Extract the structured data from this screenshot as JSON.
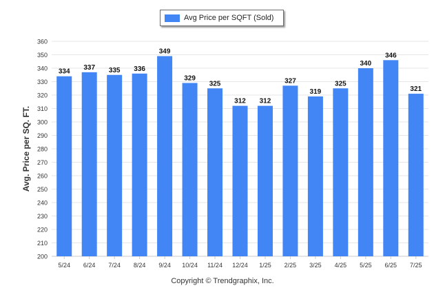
{
  "legend": {
    "label": "Avg Price per SQFT (Sold)"
  },
  "footer": {
    "copyright": "Copyright © Trendgraphix, Inc."
  },
  "colors": {
    "bar": "#4285f4",
    "grid": "#e6e6e6",
    "axis": "#c8c8c8",
    "text": "#333333"
  },
  "chart_data": {
    "type": "bar",
    "categories": [
      "5/24",
      "6/24",
      "7/24",
      "8/24",
      "9/24",
      "10/24",
      "11/24",
      "12/24",
      "1/25",
      "2/25",
      "3/25",
      "4/25",
      "5/25",
      "6/25",
      "7/25"
    ],
    "series": [
      {
        "name": "Avg Price per SQFT (Sold)",
        "values": [
          334,
          337,
          335,
          336,
          349,
          329,
          325,
          312,
          312,
          327,
          319,
          325,
          340,
          346,
          321
        ]
      }
    ],
    "ylabel": "Avg. Price per SQ. FT.",
    "xlabel": "",
    "ylim": [
      200,
      360
    ],
    "yticks": [
      200,
      210,
      220,
      230,
      240,
      250,
      260,
      270,
      280,
      290,
      300,
      310,
      320,
      330,
      340,
      350,
      360
    ],
    "grid": true,
    "data_labels": true,
    "legend_position": "top-center"
  }
}
